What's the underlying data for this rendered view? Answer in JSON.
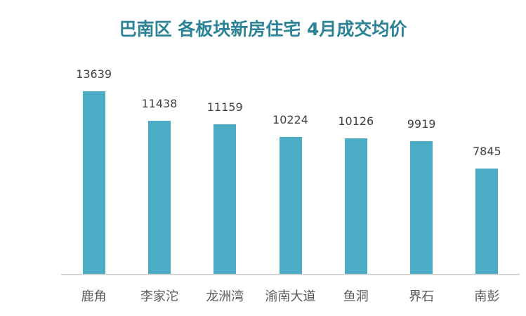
{
  "title": "巴南区 各板块新房住宅 4月成交均价",
  "colors": {
    "bar": "#4bacc6",
    "title": "#2c8396",
    "axis": "#d4d4d4"
  },
  "chart_data": {
    "type": "bar",
    "title": "巴南区 各板块新房住宅 4月成交均价",
    "categories": [
      "鹿角",
      "李家沱",
      "龙洲湾",
      "渝南大道",
      "鱼洞",
      "界石",
      "南彭"
    ],
    "values": [
      13639,
      11438,
      11159,
      10224,
      10126,
      9919,
      7845
    ],
    "xlabel": "",
    "ylabel": "",
    "ylim": [
      0,
      13639
    ],
    "grid": false,
    "legend": null,
    "data_labels": true
  }
}
